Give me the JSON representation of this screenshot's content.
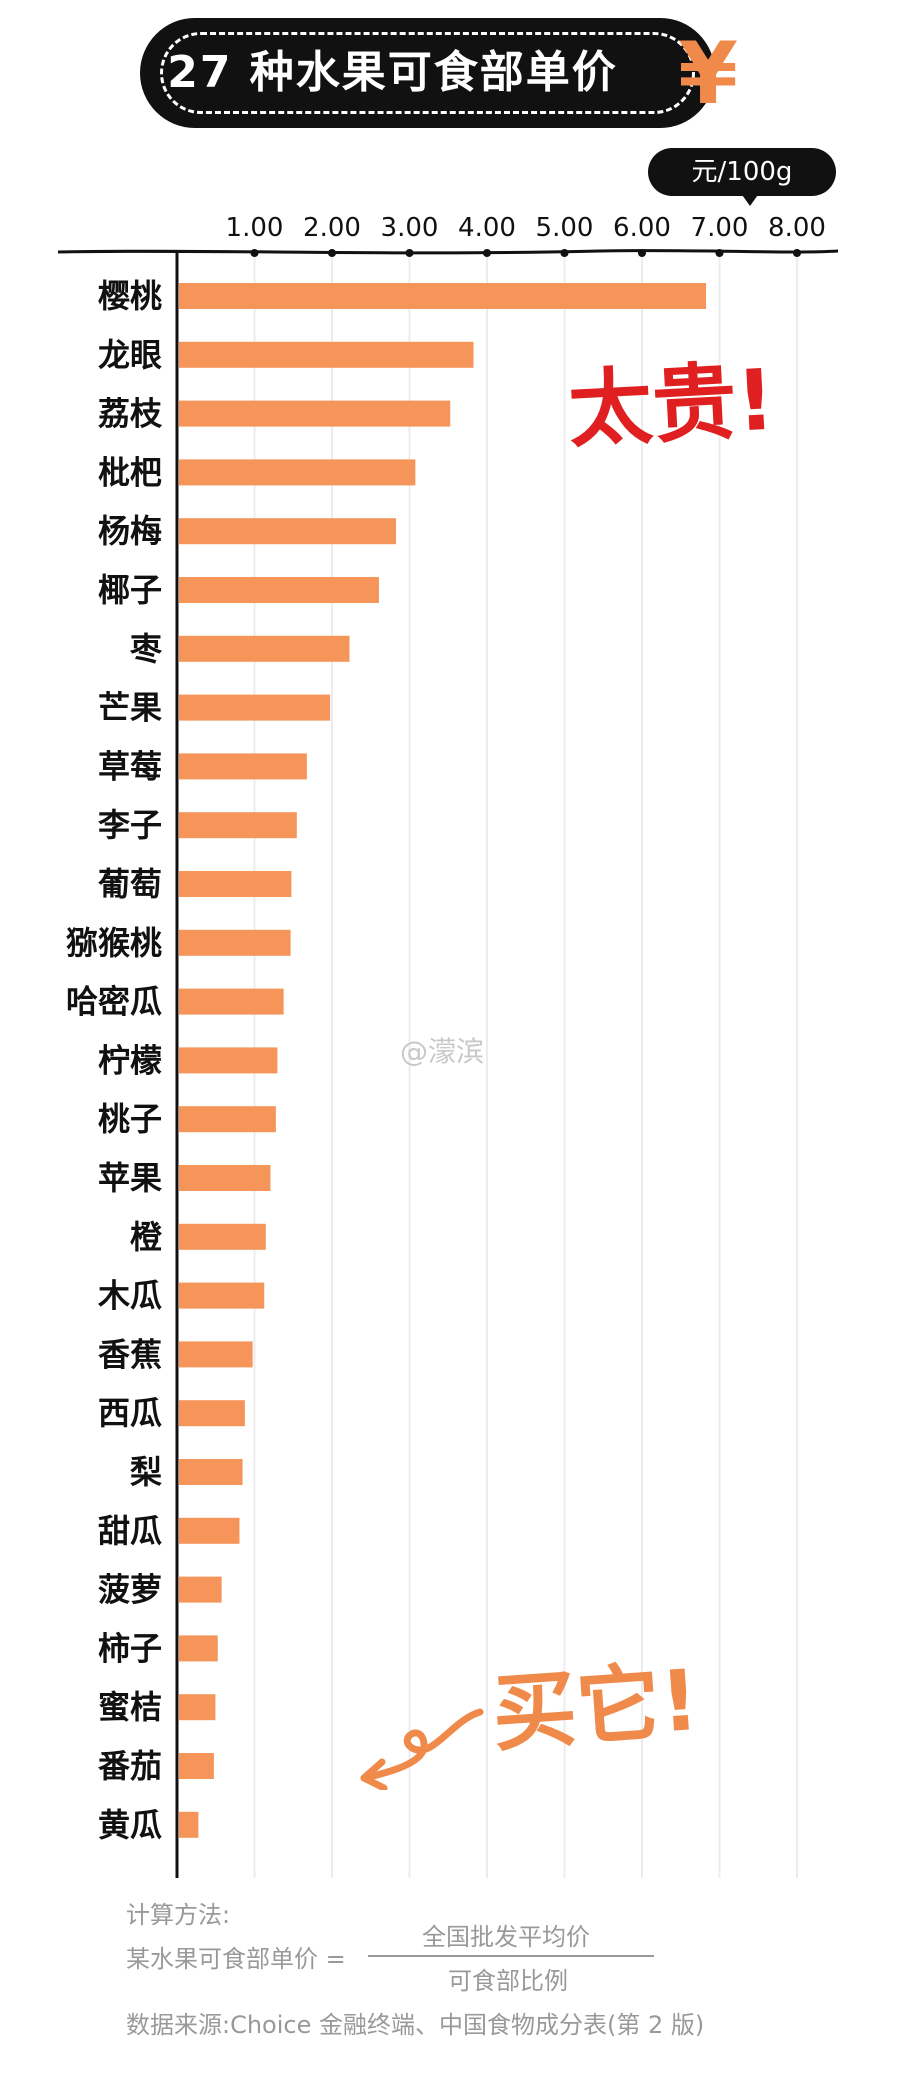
{
  "title": "27 种水果可食部单价",
  "title_icon": "yen-icon",
  "unit": "元/100g",
  "annotations": {
    "expensive": "太贵!",
    "buy": "买它!"
  },
  "watermark": "@濛滨",
  "footer": {
    "method_label": "计算方法:",
    "formula_lhs": "某水果可食部单价 =",
    "numerator": "全国批发平均价",
    "denominator": "可食部比例",
    "source": "数据来源:Choice 金融终端、中国食物成分表(第 2 版)"
  },
  "colors": {
    "bar": "#f5955a",
    "accent_red": "#e02020",
    "accent_orange": "#f08a4b",
    "badge": "#111111"
  },
  "chart_data": {
    "type": "bar",
    "orientation": "horizontal",
    "title": "27 种水果可食部单价",
    "unit": "元/100g",
    "xlim": [
      0,
      8
    ],
    "xticks": [
      "1.00",
      "2.00",
      "3.00",
      "4.00",
      "5.00",
      "6.00",
      "7.00",
      "8.00"
    ],
    "grid": true,
    "categories": [
      "樱桃",
      "龙眼",
      "荔枝",
      "枇杷",
      "杨梅",
      "椰子",
      "枣",
      "芒果",
      "草莓",
      "李子",
      "葡萄",
      "猕猴桃",
      "哈密瓜",
      "柠檬",
      "桃子",
      "苹果",
      "橙",
      "木瓜",
      "香蕉",
      "西瓜",
      "梨",
      "甜瓜",
      "菠萝",
      "柿子",
      "蜜桔",
      "番茄",
      "黄瓜"
    ],
    "values": [
      6.8,
      3.8,
      3.5,
      3.05,
      2.8,
      2.58,
      2.2,
      1.95,
      1.65,
      1.52,
      1.45,
      1.44,
      1.35,
      1.27,
      1.25,
      1.18,
      1.12,
      1.1,
      0.95,
      0.85,
      0.82,
      0.78,
      0.55,
      0.5,
      0.47,
      0.45,
      0.25
    ]
  }
}
